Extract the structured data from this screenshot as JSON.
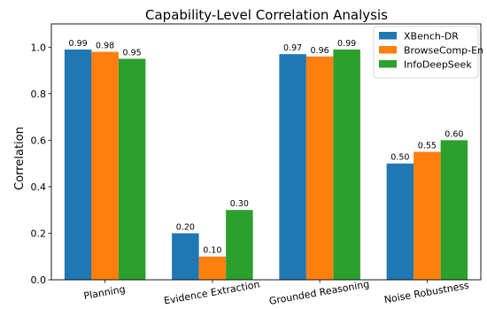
{
  "chart_data": {
    "type": "bar",
    "title": "Capability-Level Correlation Analysis",
    "xlabel": "",
    "ylabel": "Correlation",
    "ylim": [
      0.0,
      1.1
    ],
    "yticks": [
      "0.0",
      "0.2",
      "0.4",
      "0.6",
      "0.8",
      "1.0"
    ],
    "categories": [
      "Planning",
      "Evidence Extraction",
      "Grounded Reasoning",
      "Noise Robustness"
    ],
    "series": [
      {
        "name": "XBench-DR",
        "color": "#1f77b4",
        "values": [
          0.99,
          0.2,
          0.97,
          0.5
        ],
        "labels": [
          "0.99",
          "0.20",
          "0.97",
          "0.50"
        ]
      },
      {
        "name": "BrowseComp-En",
        "color": "#ff7f0e",
        "values": [
          0.98,
          0.1,
          0.96,
          0.55
        ],
        "labels": [
          "0.98",
          "0.10",
          "0.96",
          "0.55"
        ]
      },
      {
        "name": "InfoDeepSeek",
        "color": "#2ca02c",
        "values": [
          0.95,
          0.3,
          0.99,
          0.6
        ],
        "labels": [
          "0.95",
          "0.30",
          "0.99",
          "0.60"
        ]
      }
    ],
    "grid": false,
    "legend": "top-right"
  }
}
